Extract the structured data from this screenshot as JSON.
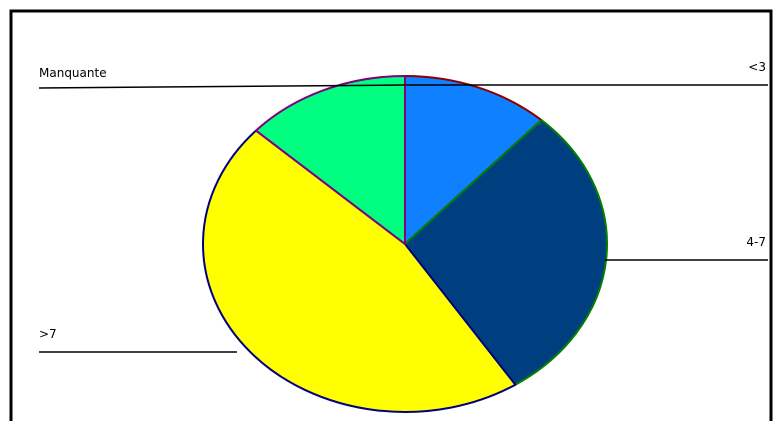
{
  "chart_data": {
    "type": "pie",
    "title": "",
    "legend": "none",
    "slices": [
      {
        "label": "<3",
        "percent": 11.8,
        "color": "#0f80ff",
        "edge": "#8b0000"
      },
      {
        "label": "4-7",
        "percent": 29.0,
        "color": "#003f7f",
        "edge": "#008000"
      },
      {
        "label": ">7",
        "percent": 46.0,
        "color": "#ffff00",
        "edge": "#000080"
      },
      {
        "label": "Manquante",
        "percent": 13.2,
        "color": "#00ff80",
        "edge": "#800080"
      }
    ]
  }
}
